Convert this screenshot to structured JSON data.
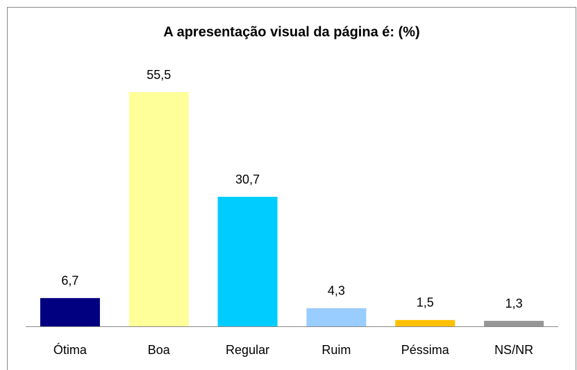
{
  "chart_data": {
    "type": "bar",
    "title": "A apresentação visual da página é: (%)",
    "categories": [
      "Ótima",
      "Boa",
      "Regular",
      "Ruim",
      "Péssima",
      "NS/NR"
    ],
    "values": [
      6.7,
      55.5,
      30.7,
      4.3,
      1.5,
      1.3
    ],
    "value_labels": [
      "6,7",
      "55,5",
      "30,7",
      "4,3",
      "1,5",
      "1,3"
    ],
    "colors": [
      "#000080",
      "#ffff99",
      "#00ccff",
      "#99ccff",
      "#ffc000",
      "#969696"
    ]
  }
}
